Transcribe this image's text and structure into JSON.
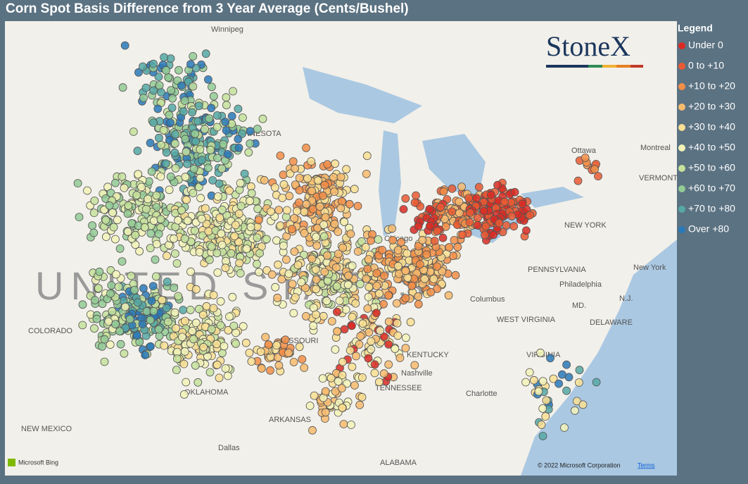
{
  "header": {
    "title": "Corn Spot Basis Difference from 3 Year Average (Cents/Bushel)"
  },
  "logo": "StoneX",
  "legend": {
    "title": "Legend",
    "items": [
      {
        "label": "Under 0",
        "color": "#d92b24"
      },
      {
        "label": "0 to +10",
        "color": "#ea5a33"
      },
      {
        "label": "+10 to +20",
        "color": "#f28e48"
      },
      {
        "label": "+20 to +30",
        "color": "#f7bb6e"
      },
      {
        "label": "+30 to +40",
        "color": "#f9df93"
      },
      {
        "label": "+40 to +50",
        "color": "#f3f3b8"
      },
      {
        "label": "+50 to +60",
        "color": "#c6e29c"
      },
      {
        "label": "+60 to +70",
        "color": "#93cb95"
      },
      {
        "label": "+70 to +80",
        "color": "#56a8a6"
      },
      {
        "label": "Over +80",
        "color": "#2a79b8"
      }
    ]
  },
  "map": {
    "big_label": "UNITED STATES",
    "places": [
      "Winnipeg",
      "MINNESOTA",
      "COLORADO",
      "MISSOURI",
      "OKLAHOMA",
      "ARKANSAS",
      "NEW MEXICO",
      "Dallas",
      "ALABAMA",
      "TENNESSEE",
      "Nashville",
      "KENTUCKY",
      "WEST VIRGINIA",
      "VIRGINIA",
      "Charlotte",
      "PENNSYLVANIA",
      "Philadelphia",
      "NEW YORK",
      "New York",
      "Ottawa",
      "Montreal",
      "VERMONT",
      "Columbus",
      "Chicago",
      "MD.",
      "DELAWARE",
      "N.J."
    ]
  },
  "footer": {
    "brand": "Microsoft Bing",
    "copyright": "© 2022 Microsoft Corporation",
    "terms": "Terms"
  }
}
